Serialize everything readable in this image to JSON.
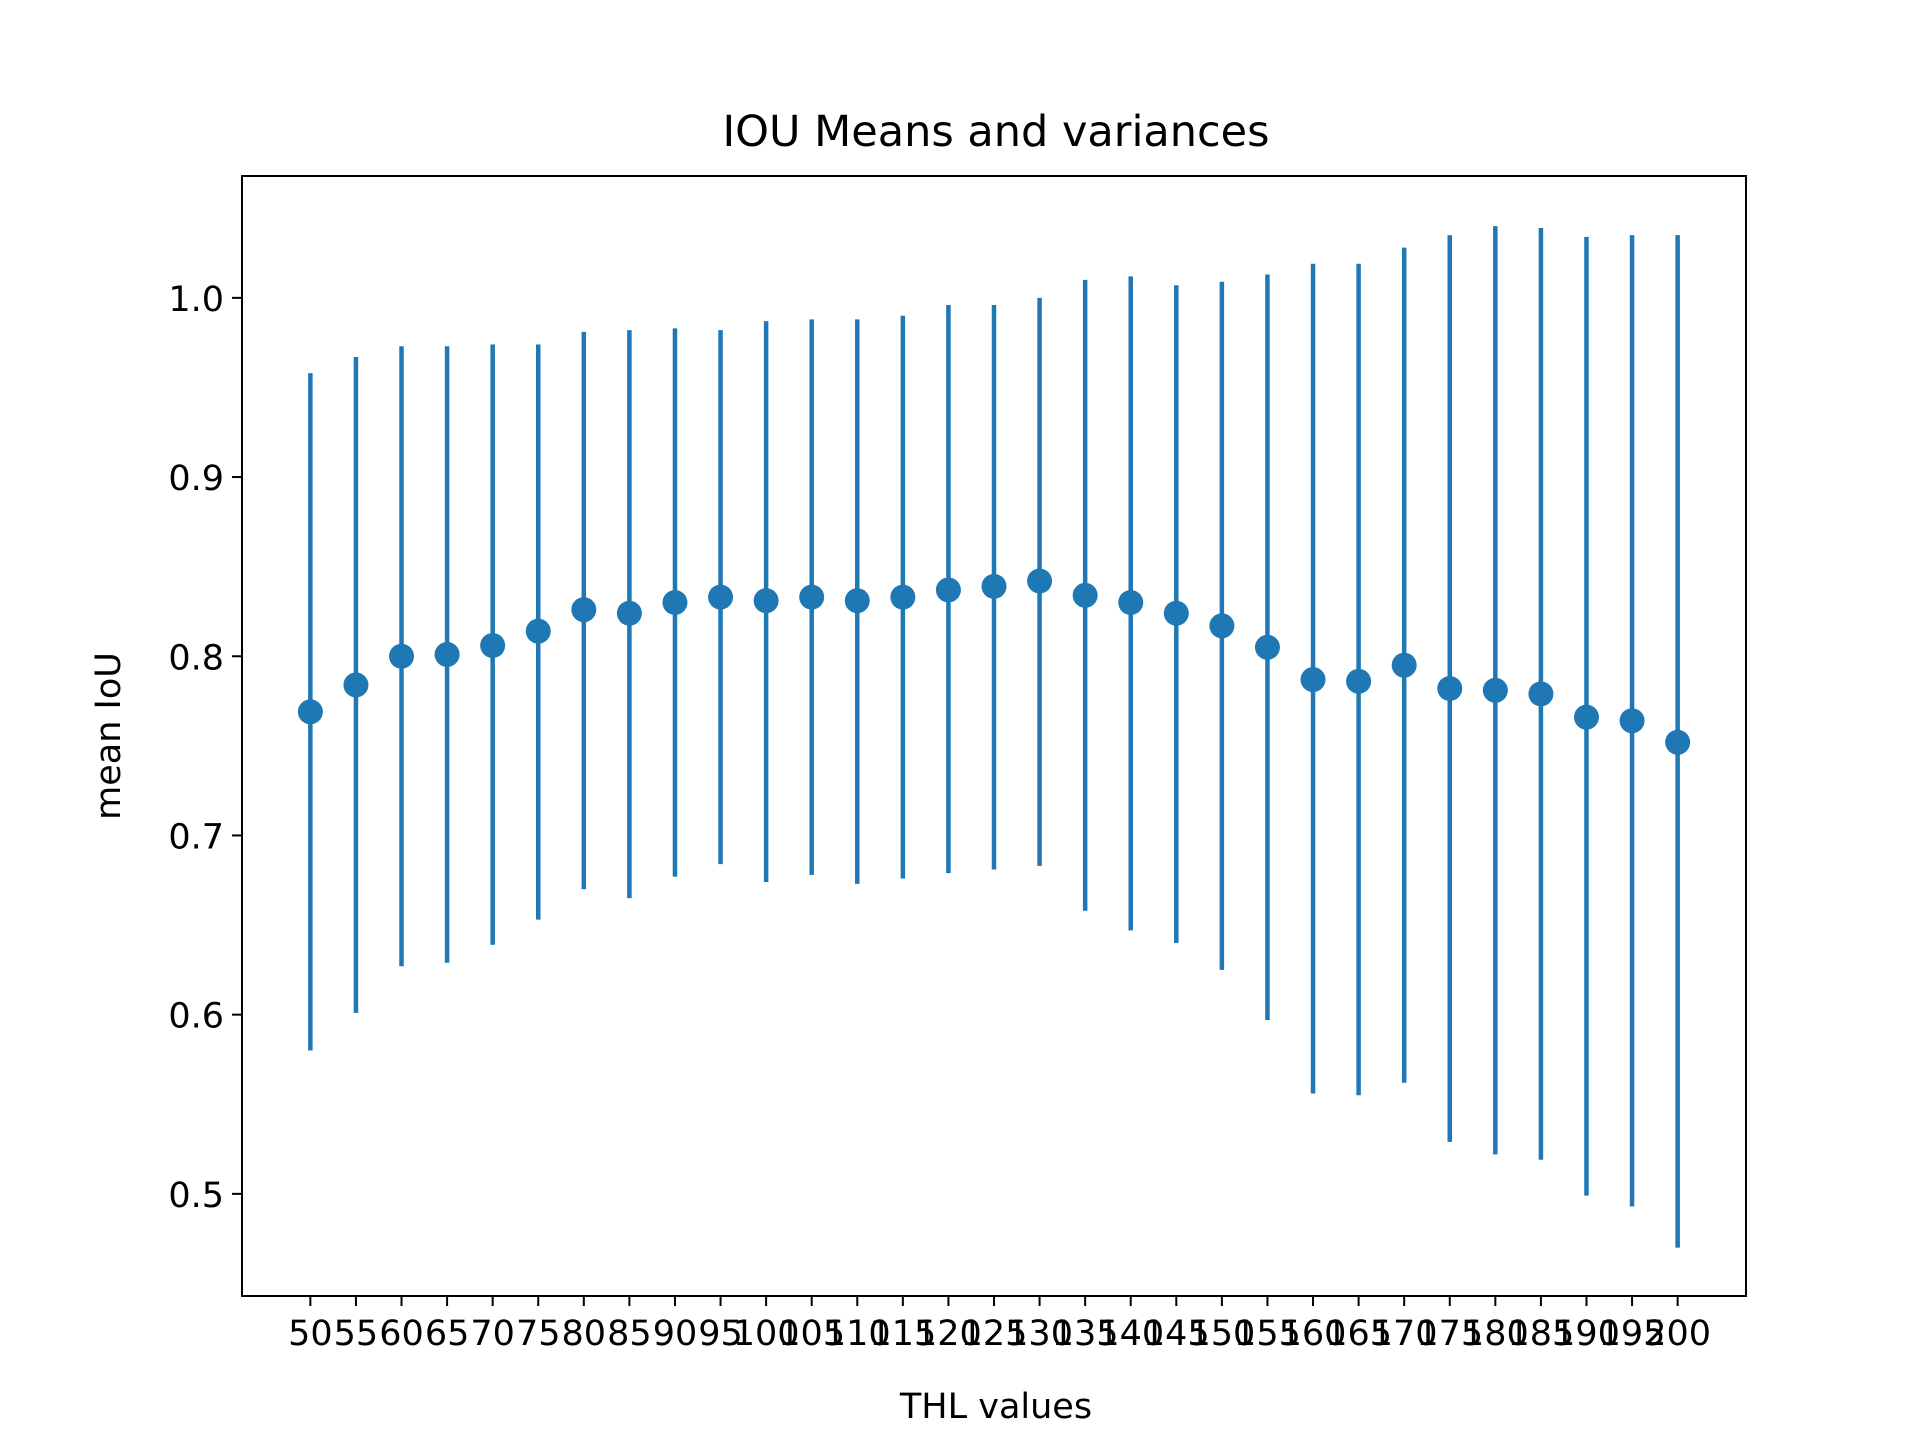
{
  "chart_data": {
    "type": "scatter",
    "title": "IOU Means and variances",
    "xlabel": "THL values",
    "ylabel": "mean IoU",
    "x": [
      50,
      55,
      60,
      65,
      70,
      75,
      80,
      85,
      90,
      95,
      100,
      105,
      110,
      115,
      120,
      125,
      130,
      135,
      140,
      145,
      150,
      155,
      160,
      165,
      170,
      175,
      180,
      185,
      190,
      195,
      200
    ],
    "y_ticks": [
      0.5,
      0.6,
      0.7,
      0.8,
      0.9,
      1.0
    ],
    "y_tick_labels": [
      "0.5",
      "0.6",
      "0.7",
      "0.8",
      "0.9",
      "1.0"
    ],
    "ylim": [
      0.443,
      1.068
    ],
    "xlim": [
      42.5,
      207.5
    ],
    "grid": false,
    "series": [
      {
        "color": "#1f77b4",
        "means": [
          0.769,
          0.784,
          0.8,
          0.801,
          0.806,
          0.814,
          0.826,
          0.824,
          0.83,
          0.833,
          0.831,
          0.833,
          0.831,
          0.833,
          0.837,
          0.839,
          0.842,
          0.834,
          0.83,
          0.824,
          0.817,
          0.805,
          0.787,
          0.786,
          0.795,
          0.782,
          0.781,
          0.779,
          0.766,
          0.764,
          0.752
        ],
        "upper": [
          0.958,
          0.967,
          0.973,
          0.973,
          0.974,
          0.974,
          0.981,
          0.982,
          0.983,
          0.982,
          0.987,
          0.988,
          0.988,
          0.99,
          0.996,
          0.996,
          1.0,
          1.01,
          1.012,
          1.007,
          1.009,
          1.013,
          1.019,
          1.019,
          1.028,
          1.035,
          1.04,
          1.039,
          1.034,
          1.035,
          1.035
        ],
        "lower": [
          0.58,
          0.601,
          0.627,
          0.629,
          0.639,
          0.653,
          0.67,
          0.665,
          0.677,
          0.684,
          0.674,
          0.678,
          0.673,
          0.676,
          0.679,
          0.681,
          0.683,
          0.658,
          0.647,
          0.64,
          0.625,
          0.597,
          0.556,
          0.555,
          0.562,
          0.529,
          0.522,
          0.519,
          0.499,
          0.493,
          0.47
        ]
      }
    ]
  }
}
